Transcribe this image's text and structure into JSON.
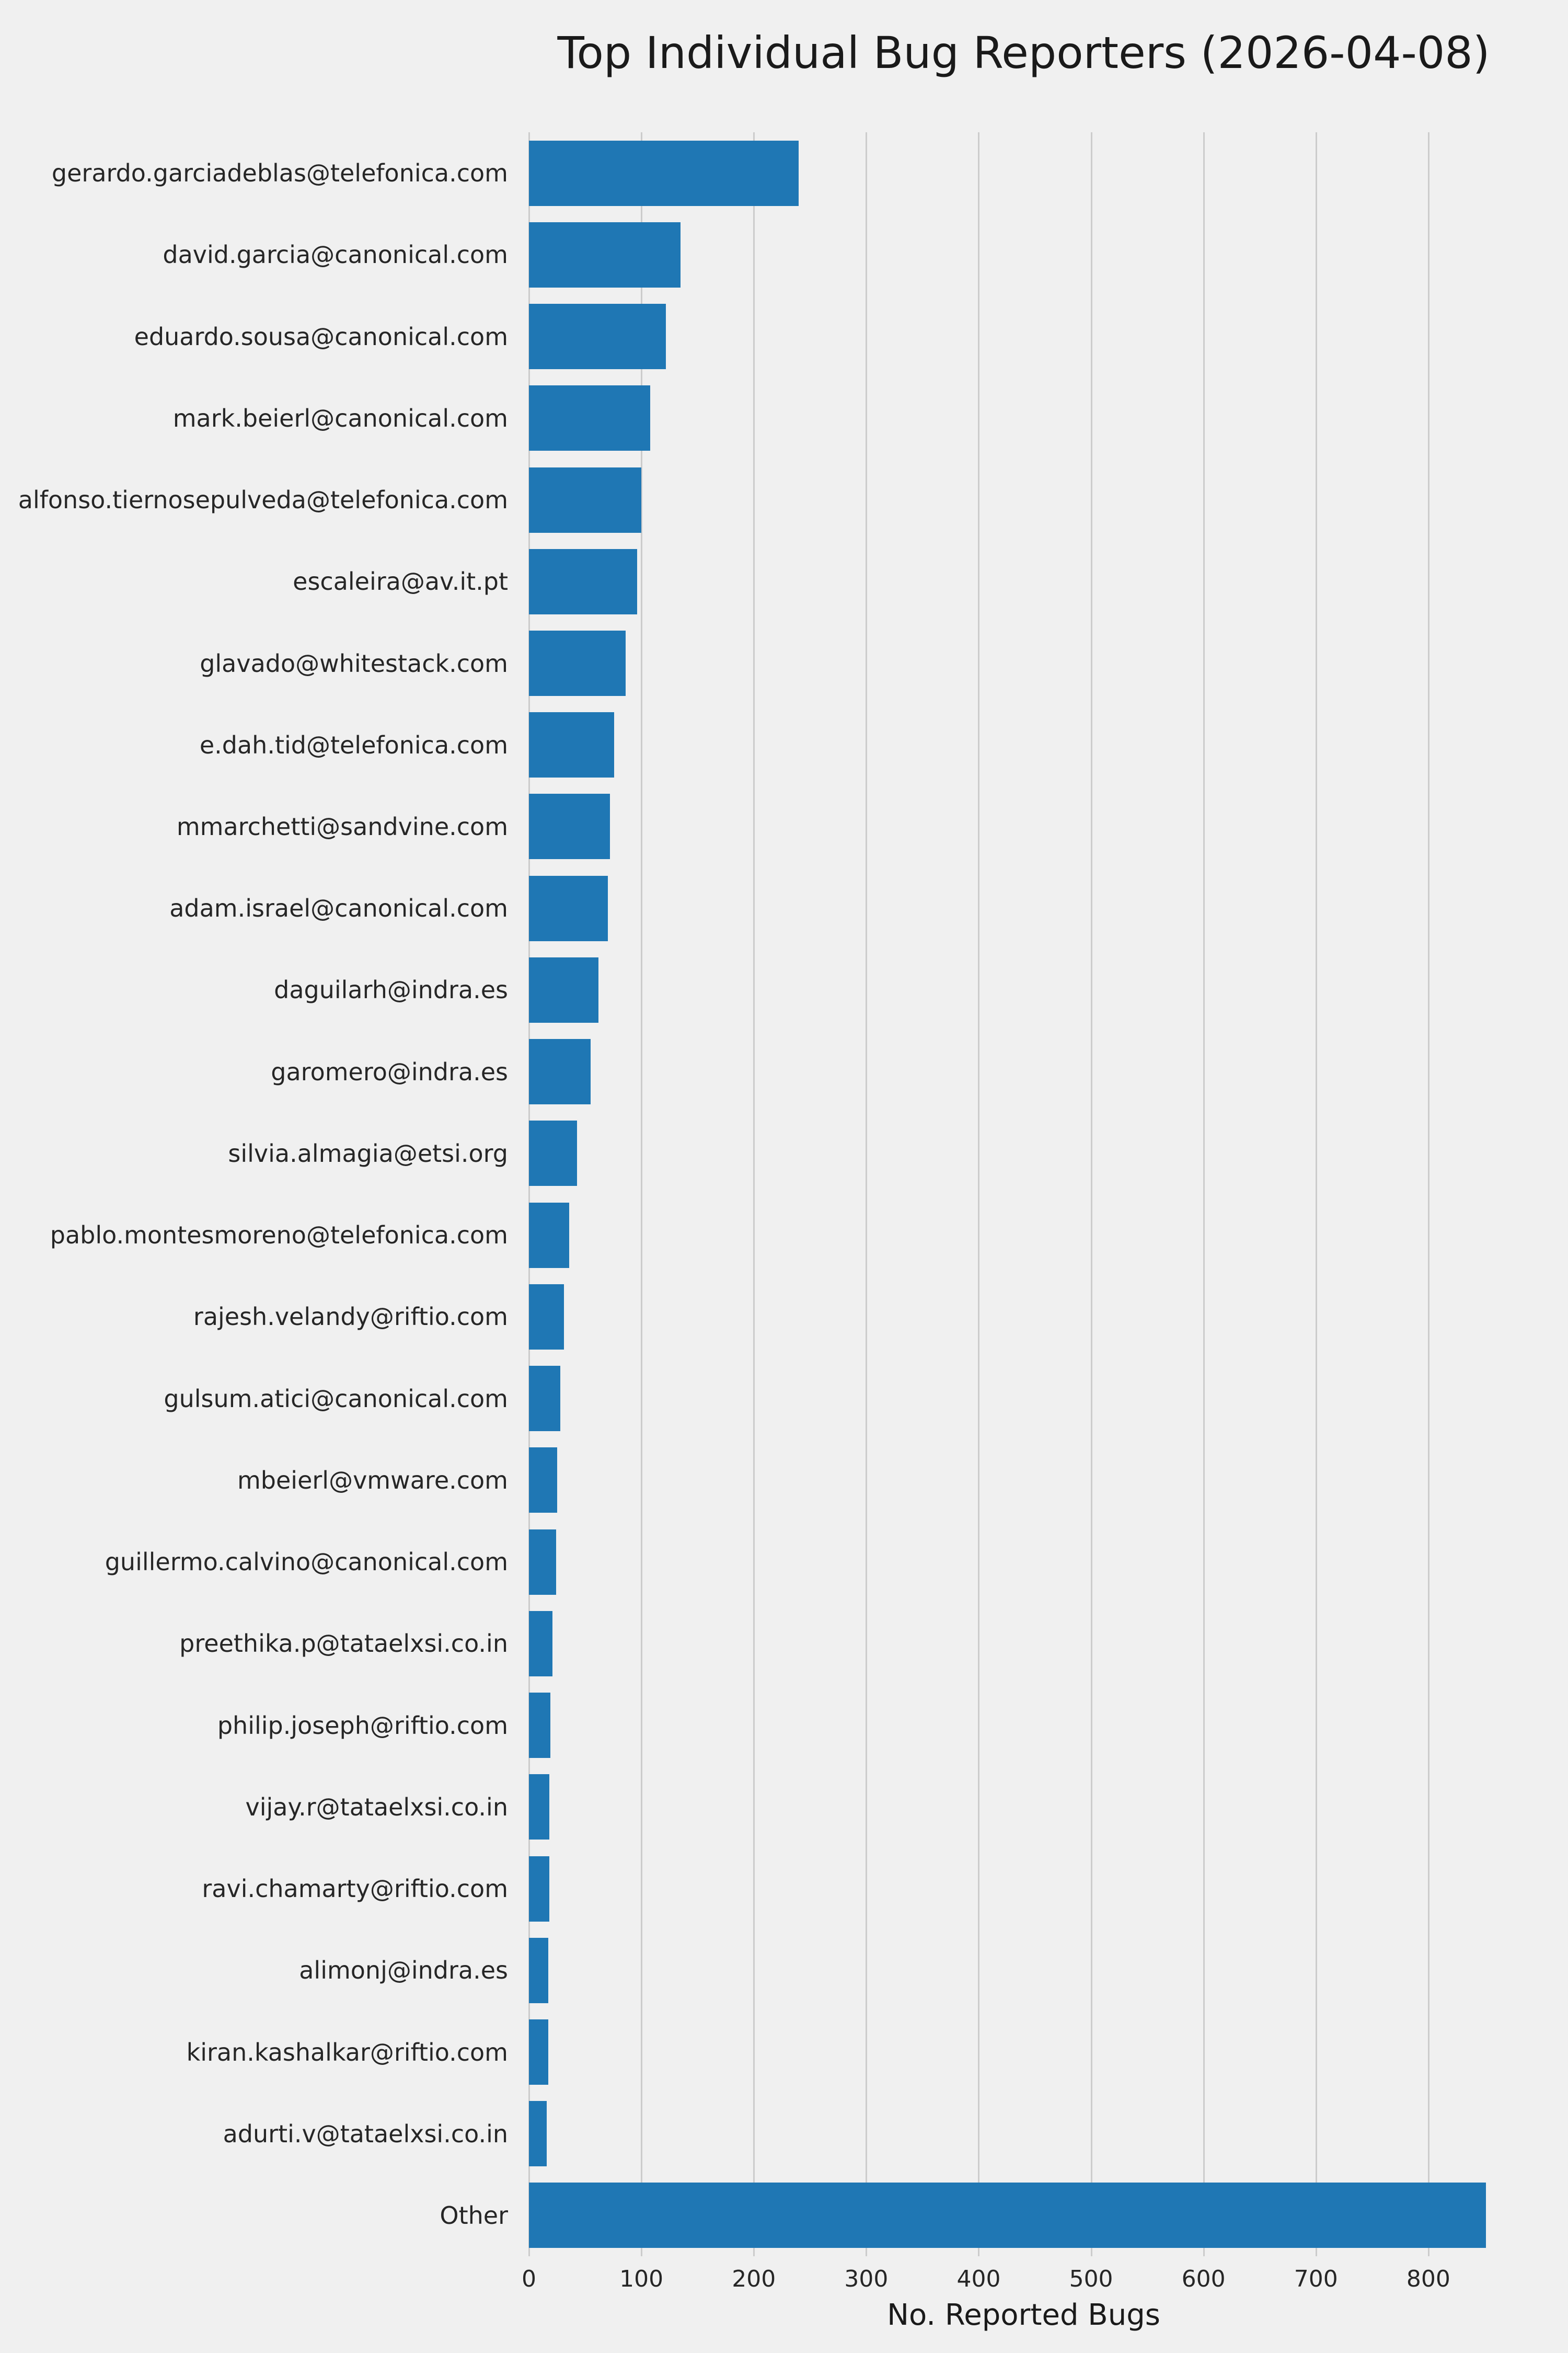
{
  "chart_data": {
    "type": "bar",
    "orientation": "horizontal",
    "title": "Top Individual Bug Reporters (2026-04-08)",
    "xlabel": "No. Reported Bugs",
    "ylabel": "",
    "xlim": [
      0,
      880
    ],
    "xticks": [
      0,
      100,
      200,
      300,
      400,
      500,
      600,
      700,
      800
    ],
    "grid": true,
    "legend": "none",
    "bar_color": "#1f77b4",
    "background_color": "#f0f0f0",
    "grid_color": "#cccccc",
    "categories": [
      "gerardo.garciadeblas@telefonica.com",
      "david.garcia@canonical.com",
      "eduardo.sousa@canonical.com",
      "mark.beierl@canonical.com",
      "alfonso.tiernosepulveda@telefonica.com",
      "escaleira@av.it.pt",
      "glavado@whitestack.com",
      "e.dah.tid@telefonica.com",
      "mmarchetti@sandvine.com",
      "adam.israel@canonical.com",
      "daguilarh@indra.es",
      "garomero@indra.es",
      "silvia.almagia@etsi.org",
      "pablo.montesmoreno@telefonica.com",
      "rajesh.velandy@riftio.com",
      "gulsum.atici@canonical.com",
      "mbeierl@vmware.com",
      "guillermo.calvino@canonical.com",
      "preethika.p@tataelxsi.co.in",
      "philip.joseph@riftio.com",
      "vijay.r@tataelxsi.co.in",
      "ravi.chamarty@riftio.com",
      "alimonj@indra.es",
      "kiran.kashalkar@riftio.com",
      "adurti.v@tataelxsi.co.in",
      "Other"
    ],
    "values": [
      240,
      135,
      122,
      108,
      100,
      96,
      86,
      76,
      72,
      70,
      62,
      55,
      43,
      36,
      31,
      28,
      25,
      24,
      21,
      19,
      18,
      18,
      17,
      17,
      16,
      851
    ]
  }
}
